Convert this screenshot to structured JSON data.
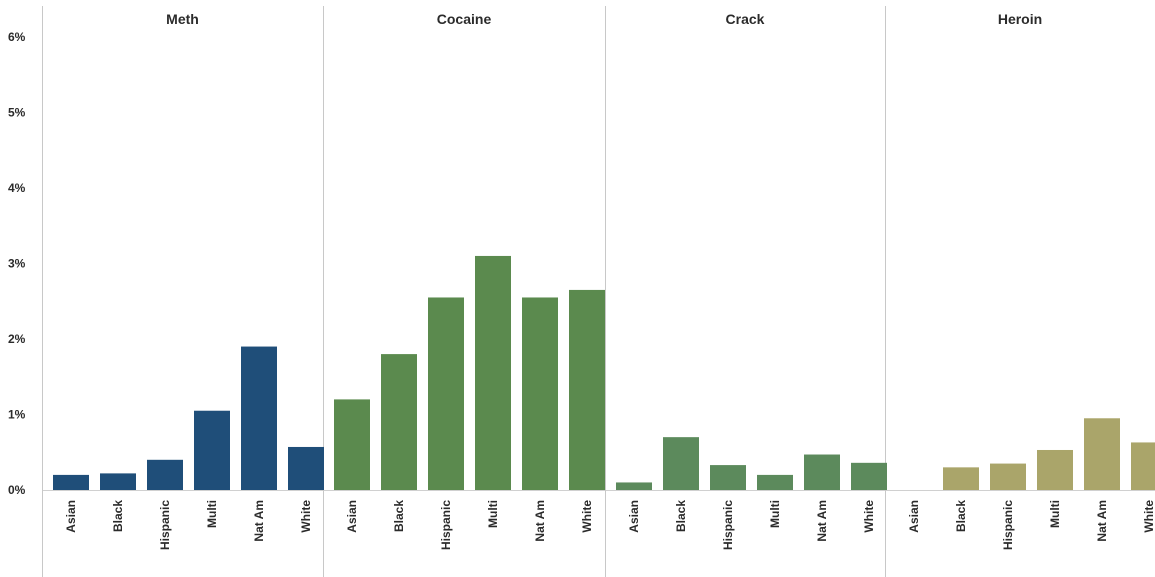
{
  "chart_data": {
    "type": "bar",
    "y_ticks": [
      "0%",
      "1%",
      "2%",
      "3%",
      "4%",
      "5%",
      "6%"
    ],
    "ylim": [
      0,
      6
    ],
    "grid": false,
    "colors": {
      "Meth": "#1f4e79",
      "Cocaine": "#5b8a4e",
      "Crack": "#5c8a5c",
      "Heroin": "#aaa56a"
    },
    "panels": [
      {
        "title": "Meth",
        "categories": [
          "Asian",
          "Black",
          "Hispanic",
          "Multi",
          "Nat Am",
          "White"
        ],
        "values": [
          0.2,
          0.22,
          0.4,
          1.05,
          1.9,
          0.57
        ]
      },
      {
        "title": "Cocaine",
        "categories": [
          "Asian",
          "Black",
          "Hispanic",
          "Multi",
          "Nat Am",
          "White"
        ],
        "values": [
          1.2,
          1.8,
          2.55,
          3.1,
          2.55,
          2.65
        ]
      },
      {
        "title": "Crack",
        "categories": [
          "Asian",
          "Black",
          "Hispanic",
          "Multi",
          "Nat Am",
          "White"
        ],
        "values": [
          0.1,
          0.7,
          0.33,
          0.2,
          0.47,
          0.36
        ]
      },
      {
        "title": "Heroin",
        "categories": [
          "Asian",
          "Black",
          "Hispanic",
          "Multi",
          "Nat Am",
          "White"
        ],
        "values": [
          0,
          0.3,
          0.35,
          0.53,
          0.95,
          0.63
        ]
      }
    ]
  }
}
